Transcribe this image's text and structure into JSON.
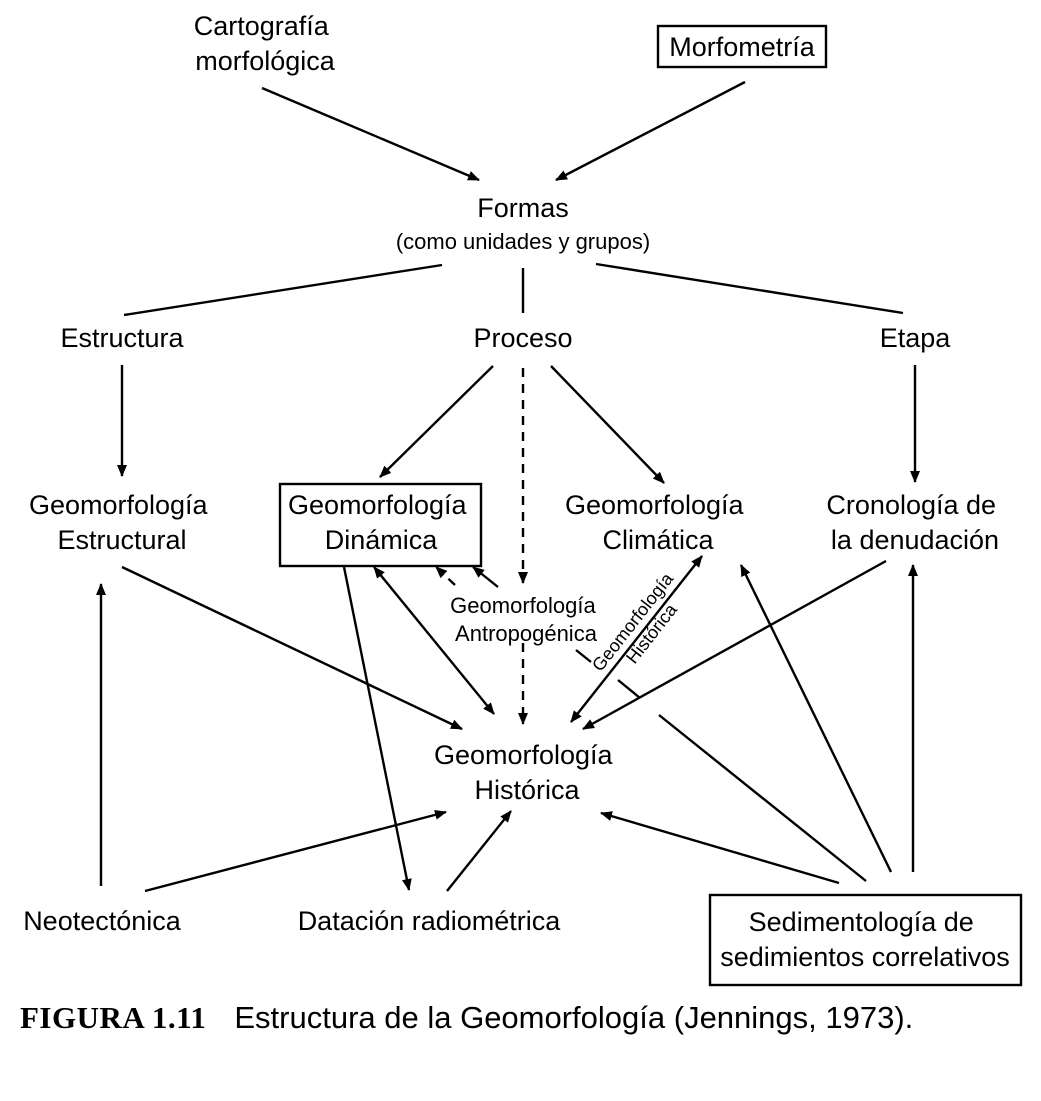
{
  "diagram": {
    "nodes": {
      "cartografia": [
        "Cartografía",
        "morfológica"
      ],
      "morfometria": [
        "Morfometría"
      ],
      "formas": [
        "Formas"
      ],
      "formas_sub": [
        "(como unidades y grupos)"
      ],
      "estructura": [
        "Estructura"
      ],
      "proceso": [
        "Proceso"
      ],
      "etapa": [
        "Etapa"
      ],
      "geo_estructural": [
        "Geomorfología",
        "Estructural"
      ],
      "geo_dinamica": [
        "Geomorfología",
        "Dinámica"
      ],
      "geo_climatica": [
        "Geomorfología",
        "Climática"
      ],
      "cronologia": [
        "Cronología de",
        "la denudación"
      ],
      "geo_antropogenica": [
        "Geomorfología",
        "Antropogénica"
      ],
      "geo_historica_diag": [
        "Geomorfología",
        "Histórica"
      ],
      "geo_historica": [
        "Geomorfología",
        "Histórica"
      ],
      "neotectonica": [
        "Neotectónica"
      ],
      "datacion": [
        "Datación radiométrica"
      ],
      "sedimentologia": [
        "Sedimentología de",
        "sedimientos correlativos"
      ]
    },
    "boxed": [
      "morfometria",
      "geo_dinamica",
      "sedimentologia"
    ],
    "edges": [
      {
        "from": "cartografia",
        "to": "formas",
        "style": "arrow"
      },
      {
        "from": "morfometria",
        "to": "formas",
        "style": "arrow"
      },
      {
        "from": "formas",
        "to": "estructura",
        "style": "line"
      },
      {
        "from": "formas",
        "to": "proceso",
        "style": "line"
      },
      {
        "from": "formas",
        "to": "etapa",
        "style": "line"
      },
      {
        "from": "estructura",
        "to": "geo_estructural",
        "style": "arrow"
      },
      {
        "from": "proceso",
        "to": "geo_dinamica",
        "style": "arrow"
      },
      {
        "from": "proceso",
        "to": "geo_climatica",
        "style": "arrow"
      },
      {
        "from": "proceso",
        "to": "geo_antropogenica",
        "style": "dashed-arrow"
      },
      {
        "from": "etapa",
        "to": "cronologia",
        "style": "arrow"
      },
      {
        "from": "geo_antropogenica",
        "to": "geo_historica",
        "style": "dashed-arrow"
      },
      {
        "from": "geo_antropogenica",
        "to": "geo_dinamica",
        "style": "dashed-arrow"
      },
      {
        "from": "geo_antropogenica",
        "to": "geo_dinamica",
        "style": "arrow"
      },
      {
        "from": "geo_dinamica",
        "to": "geo_historica",
        "style": "double-arrow"
      },
      {
        "from": "geo_historica",
        "to": "geo_climatica",
        "style": "double-arrow"
      },
      {
        "from": "geo_estructural",
        "to": "geo_historica",
        "style": "arrow"
      },
      {
        "from": "cronologia",
        "to": "geo_historica",
        "style": "arrow"
      },
      {
        "from": "geo_dinamica",
        "to": "datacion",
        "style": "arrow"
      },
      {
        "from": "neotectonica",
        "to": "geo_estructural",
        "style": "arrow"
      },
      {
        "from": "neotectonica",
        "to": "geo_historica",
        "style": "arrow"
      },
      {
        "from": "datacion",
        "to": "geo_historica",
        "style": "arrow"
      },
      {
        "from": "sedimentologia",
        "to": "geo_historica",
        "style": "arrow"
      },
      {
        "from": "sedimentologia",
        "to": "geo_climatica",
        "style": "arrow"
      },
      {
        "from": "sedimentologia",
        "to": "cronologia",
        "style": "arrow"
      },
      {
        "from": "sedimentologia",
        "to": "geo_antropogenica",
        "style": "line"
      }
    ]
  },
  "caption": {
    "label": "FIGURA 1.11",
    "text": "Estructura de la Geomorfología (Jennings, 1973)."
  }
}
